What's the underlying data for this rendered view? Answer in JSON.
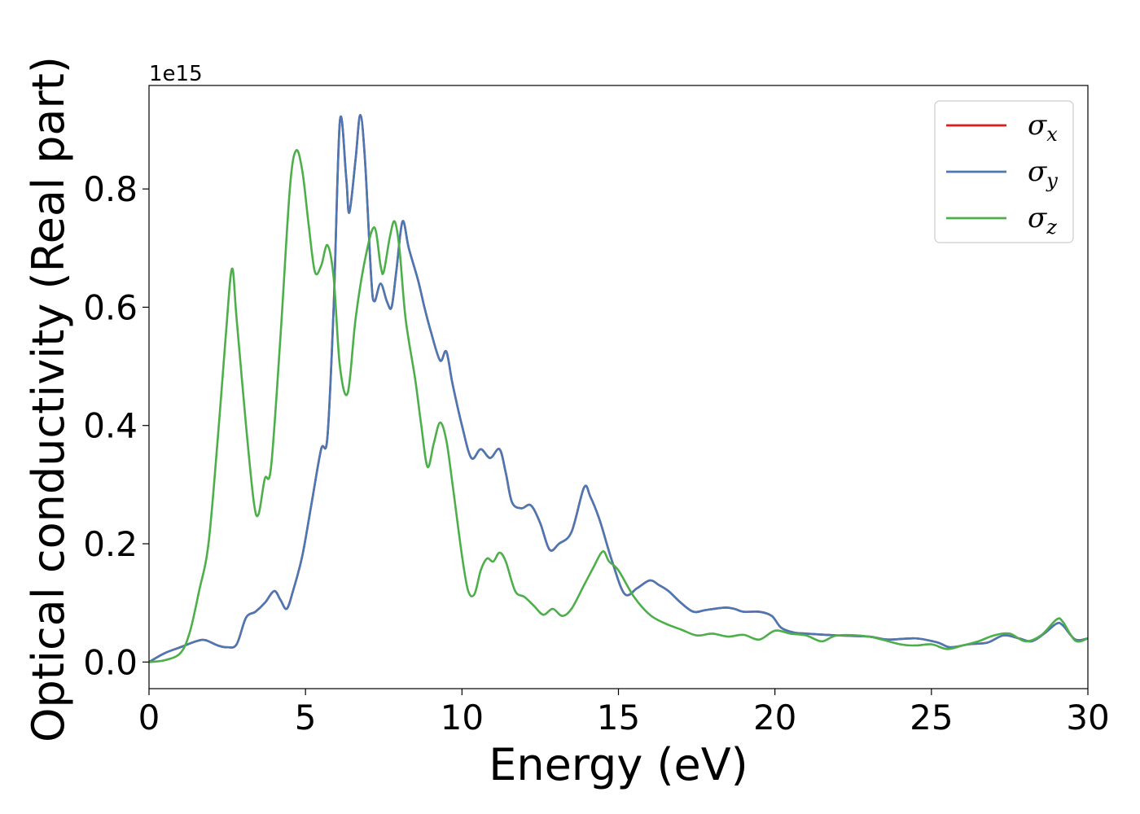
{
  "chart_data": {
    "type": "line",
    "xlabel": "Energy (eV)",
    "ylabel": "Optical conductivity (Real part)",
    "y_offset_label": "1e15",
    "xlim": [
      0,
      30
    ],
    "ylim": [
      -0.045,
      0.975
    ],
    "xticks": [
      0,
      5,
      10,
      15,
      20,
      25,
      30
    ],
    "yticks": [
      0.0,
      0.2,
      0.4,
      0.6,
      0.8
    ],
    "ytick_labels": [
      "0.0",
      "0.2",
      "0.4",
      "0.6",
      "0.8"
    ],
    "grid": false,
    "legend_position": "top-right",
    "series": [
      {
        "name": "σx",
        "symbol": "σ",
        "subscript": "x",
        "color": "#e41a1c",
        "points": [
          [
            0,
            0
          ],
          [
            0.5,
            0.015
          ],
          [
            1,
            0.025
          ],
          [
            1.5,
            0.035
          ],
          [
            1.8,
            0.037
          ],
          [
            2.2,
            0.028
          ],
          [
            2.5,
            0.025
          ],
          [
            2.8,
            0.03
          ],
          [
            3.1,
            0.075
          ],
          [
            3.4,
            0.085
          ],
          [
            3.7,
            0.1
          ],
          [
            4.0,
            0.12
          ],
          [
            4.2,
            0.105
          ],
          [
            4.4,
            0.09
          ],
          [
            4.6,
            0.12
          ],
          [
            4.9,
            0.18
          ],
          [
            5.2,
            0.27
          ],
          [
            5.5,
            0.36
          ],
          [
            5.7,
            0.38
          ],
          [
            5.9,
            0.6
          ],
          [
            6.1,
            0.915
          ],
          [
            6.3,
            0.82
          ],
          [
            6.4,
            0.76
          ],
          [
            6.6,
            0.85
          ],
          [
            6.75,
            0.925
          ],
          [
            6.9,
            0.85
          ],
          [
            7.1,
            0.65
          ],
          [
            7.2,
            0.61
          ],
          [
            7.4,
            0.64
          ],
          [
            7.6,
            0.61
          ],
          [
            7.75,
            0.6
          ],
          [
            7.9,
            0.66
          ],
          [
            8.1,
            0.745
          ],
          [
            8.3,
            0.7
          ],
          [
            8.6,
            0.645
          ],
          [
            8.8,
            0.6
          ],
          [
            9.0,
            0.56
          ],
          [
            9.3,
            0.51
          ],
          [
            9.5,
            0.525
          ],
          [
            9.7,
            0.47
          ],
          [
            10.0,
            0.4
          ],
          [
            10.3,
            0.345
          ],
          [
            10.6,
            0.36
          ],
          [
            10.9,
            0.345
          ],
          [
            11.2,
            0.36
          ],
          [
            11.4,
            0.32
          ],
          [
            11.6,
            0.27
          ],
          [
            11.9,
            0.26
          ],
          [
            12.2,
            0.265
          ],
          [
            12.5,
            0.235
          ],
          [
            12.8,
            0.19
          ],
          [
            13.1,
            0.2
          ],
          [
            13.5,
            0.22
          ],
          [
            13.9,
            0.295
          ],
          [
            14.1,
            0.28
          ],
          [
            14.4,
            0.24
          ],
          [
            14.8,
            0.17
          ],
          [
            15.2,
            0.115
          ],
          [
            15.6,
            0.125
          ],
          [
            16.0,
            0.138
          ],
          [
            16.3,
            0.13
          ],
          [
            16.6,
            0.12
          ],
          [
            17.0,
            0.1
          ],
          [
            17.4,
            0.085
          ],
          [
            17.8,
            0.088
          ],
          [
            18.4,
            0.092
          ],
          [
            18.7,
            0.09
          ],
          [
            19.0,
            0.085
          ],
          [
            19.5,
            0.085
          ],
          [
            19.9,
            0.078
          ],
          [
            20.2,
            0.058
          ],
          [
            20.6,
            0.05
          ],
          [
            21.0,
            0.048
          ],
          [
            22.0,
            0.045
          ],
          [
            23.0,
            0.043
          ],
          [
            23.6,
            0.038
          ],
          [
            24.5,
            0.04
          ],
          [
            25.2,
            0.033
          ],
          [
            25.6,
            0.025
          ],
          [
            26.2,
            0.03
          ],
          [
            26.8,
            0.033
          ],
          [
            27.3,
            0.045
          ],
          [
            27.8,
            0.04
          ],
          [
            28.2,
            0.035
          ],
          [
            28.6,
            0.048
          ],
          [
            29.0,
            0.065
          ],
          [
            29.2,
            0.062
          ],
          [
            29.6,
            0.038
          ],
          [
            30.0,
            0.04
          ]
        ]
      },
      {
        "name": "σy",
        "symbol": "σ",
        "subscript": "y",
        "color": "#4a78b4",
        "points": [
          [
            0,
            0
          ],
          [
            0.5,
            0.015
          ],
          [
            1,
            0.025
          ],
          [
            1.5,
            0.035
          ],
          [
            1.8,
            0.037
          ],
          [
            2.2,
            0.028
          ],
          [
            2.5,
            0.025
          ],
          [
            2.8,
            0.03
          ],
          [
            3.1,
            0.075
          ],
          [
            3.4,
            0.085
          ],
          [
            3.7,
            0.1
          ],
          [
            4.0,
            0.12
          ],
          [
            4.2,
            0.105
          ],
          [
            4.4,
            0.09
          ],
          [
            4.6,
            0.12
          ],
          [
            4.9,
            0.18
          ],
          [
            5.2,
            0.27
          ],
          [
            5.5,
            0.36
          ],
          [
            5.7,
            0.38
          ],
          [
            5.9,
            0.6
          ],
          [
            6.1,
            0.915
          ],
          [
            6.3,
            0.82
          ],
          [
            6.4,
            0.76
          ],
          [
            6.6,
            0.85
          ],
          [
            6.75,
            0.925
          ],
          [
            6.9,
            0.85
          ],
          [
            7.1,
            0.65
          ],
          [
            7.2,
            0.61
          ],
          [
            7.4,
            0.64
          ],
          [
            7.6,
            0.61
          ],
          [
            7.75,
            0.6
          ],
          [
            7.9,
            0.66
          ],
          [
            8.1,
            0.745
          ],
          [
            8.3,
            0.7
          ],
          [
            8.6,
            0.645
          ],
          [
            8.8,
            0.6
          ],
          [
            9.0,
            0.56
          ],
          [
            9.3,
            0.51
          ],
          [
            9.5,
            0.525
          ],
          [
            9.7,
            0.47
          ],
          [
            10.0,
            0.4
          ],
          [
            10.3,
            0.345
          ],
          [
            10.6,
            0.36
          ],
          [
            10.9,
            0.345
          ],
          [
            11.2,
            0.36
          ],
          [
            11.4,
            0.32
          ],
          [
            11.6,
            0.27
          ],
          [
            11.9,
            0.26
          ],
          [
            12.2,
            0.265
          ],
          [
            12.5,
            0.235
          ],
          [
            12.8,
            0.19
          ],
          [
            13.1,
            0.2
          ],
          [
            13.5,
            0.22
          ],
          [
            13.9,
            0.295
          ],
          [
            14.1,
            0.28
          ],
          [
            14.4,
            0.24
          ],
          [
            14.8,
            0.17
          ],
          [
            15.2,
            0.115
          ],
          [
            15.6,
            0.125
          ],
          [
            16.0,
            0.138
          ],
          [
            16.3,
            0.13
          ],
          [
            16.6,
            0.12
          ],
          [
            17.0,
            0.1
          ],
          [
            17.4,
            0.085
          ],
          [
            17.8,
            0.088
          ],
          [
            18.4,
            0.092
          ],
          [
            18.7,
            0.09
          ],
          [
            19.0,
            0.085
          ],
          [
            19.5,
            0.085
          ],
          [
            19.9,
            0.078
          ],
          [
            20.2,
            0.058
          ],
          [
            20.6,
            0.05
          ],
          [
            21.0,
            0.048
          ],
          [
            22.0,
            0.045
          ],
          [
            23.0,
            0.043
          ],
          [
            23.6,
            0.038
          ],
          [
            24.5,
            0.04
          ],
          [
            25.2,
            0.033
          ],
          [
            25.6,
            0.025
          ],
          [
            26.2,
            0.03
          ],
          [
            26.8,
            0.033
          ],
          [
            27.3,
            0.045
          ],
          [
            27.8,
            0.04
          ],
          [
            28.2,
            0.035
          ],
          [
            28.6,
            0.048
          ],
          [
            29.0,
            0.065
          ],
          [
            29.2,
            0.062
          ],
          [
            29.6,
            0.038
          ],
          [
            30.0,
            0.04
          ]
        ]
      },
      {
        "name": "σz",
        "symbol": "σ",
        "subscript": "z",
        "color": "#4daf4a",
        "points": [
          [
            0,
            0
          ],
          [
            0.5,
            0.003
          ],
          [
            1.0,
            0.015
          ],
          [
            1.3,
            0.05
          ],
          [
            1.6,
            0.12
          ],
          [
            1.9,
            0.2
          ],
          [
            2.2,
            0.38
          ],
          [
            2.45,
            0.55
          ],
          [
            2.65,
            0.665
          ],
          [
            2.8,
            0.58
          ],
          [
            3.1,
            0.4
          ],
          [
            3.35,
            0.27
          ],
          [
            3.5,
            0.25
          ],
          [
            3.7,
            0.31
          ],
          [
            3.9,
            0.33
          ],
          [
            4.2,
            0.55
          ],
          [
            4.5,
            0.8
          ],
          [
            4.7,
            0.865
          ],
          [
            4.9,
            0.83
          ],
          [
            5.1,
            0.74
          ],
          [
            5.3,
            0.66
          ],
          [
            5.5,
            0.67
          ],
          [
            5.7,
            0.705
          ],
          [
            5.9,
            0.65
          ],
          [
            6.1,
            0.5
          ],
          [
            6.35,
            0.455
          ],
          [
            6.6,
            0.58
          ],
          [
            6.9,
            0.68
          ],
          [
            7.2,
            0.735
          ],
          [
            7.4,
            0.67
          ],
          [
            7.5,
            0.66
          ],
          [
            7.7,
            0.72
          ],
          [
            7.85,
            0.745
          ],
          [
            8.0,
            0.7
          ],
          [
            8.2,
            0.58
          ],
          [
            8.5,
            0.48
          ],
          [
            8.7,
            0.4
          ],
          [
            8.9,
            0.33
          ],
          [
            9.1,
            0.37
          ],
          [
            9.3,
            0.405
          ],
          [
            9.5,
            0.375
          ],
          [
            9.7,
            0.3
          ],
          [
            10.0,
            0.18
          ],
          [
            10.2,
            0.12
          ],
          [
            10.4,
            0.115
          ],
          [
            10.6,
            0.155
          ],
          [
            10.8,
            0.175
          ],
          [
            11.0,
            0.17
          ],
          [
            11.2,
            0.185
          ],
          [
            11.4,
            0.17
          ],
          [
            11.7,
            0.12
          ],
          [
            12.0,
            0.11
          ],
          [
            12.3,
            0.095
          ],
          [
            12.6,
            0.08
          ],
          [
            12.9,
            0.09
          ],
          [
            13.2,
            0.078
          ],
          [
            13.5,
            0.09
          ],
          [
            13.9,
            0.13
          ],
          [
            14.2,
            0.16
          ],
          [
            14.5,
            0.187
          ],
          [
            14.7,
            0.17
          ],
          [
            15.0,
            0.155
          ],
          [
            15.5,
            0.11
          ],
          [
            16.0,
            0.08
          ],
          [
            16.5,
            0.065
          ],
          [
            17.0,
            0.055
          ],
          [
            17.5,
            0.045
          ],
          [
            18.0,
            0.048
          ],
          [
            18.5,
            0.043
          ],
          [
            19.0,
            0.046
          ],
          [
            19.5,
            0.038
          ],
          [
            20.0,
            0.053
          ],
          [
            20.5,
            0.048
          ],
          [
            21.0,
            0.045
          ],
          [
            21.5,
            0.035
          ],
          [
            22.0,
            0.045
          ],
          [
            23.0,
            0.043
          ],
          [
            24.0,
            0.03
          ],
          [
            24.5,
            0.028
          ],
          [
            25.0,
            0.03
          ],
          [
            25.5,
            0.022
          ],
          [
            26.0,
            0.028
          ],
          [
            26.5,
            0.035
          ],
          [
            27.0,
            0.045
          ],
          [
            27.5,
            0.048
          ],
          [
            28.0,
            0.035
          ],
          [
            28.5,
            0.045
          ],
          [
            29.0,
            0.072
          ],
          [
            29.2,
            0.068
          ],
          [
            29.6,
            0.036
          ],
          [
            30.0,
            0.04
          ]
        ]
      }
    ]
  }
}
